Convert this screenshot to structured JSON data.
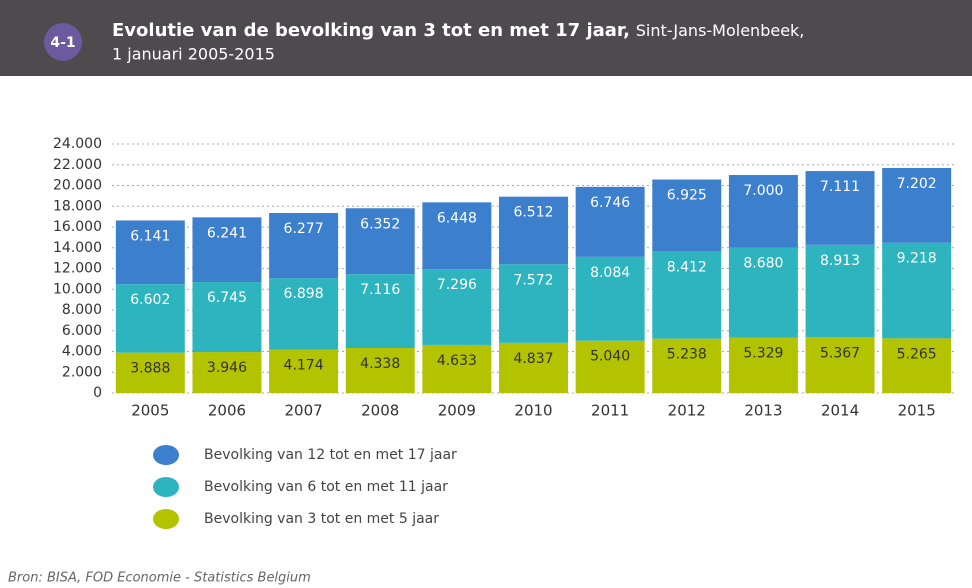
{
  "badge": "4-1",
  "chart_data": {
    "type": "bar",
    "stacked": true,
    "title": "Evolutie van de bevolking van 3 tot en met 17 jaar,",
    "subtitle": "Sint-Jans-Molenbeek,",
    "subtitle2": "1 januari 2005-2015",
    "categories": [
      "2005",
      "2006",
      "2007",
      "2008",
      "2009",
      "2010",
      "2011",
      "2012",
      "2013",
      "2014",
      "2015"
    ],
    "series": [
      {
        "name": "Bevolking van 3 tot en met 5 jaar",
        "color": "#b3c300",
        "values": [
          3888,
          3946,
          4174,
          4338,
          4633,
          4837,
          5040,
          5238,
          5329,
          5367,
          5265
        ],
        "value_labels": [
          "3.888",
          "3.946",
          "4.174",
          "4.338",
          "4.633",
          "4.837",
          "5.040",
          "5.238",
          "5.329",
          "5.367",
          "5.265"
        ]
      },
      {
        "name": "Bevolking van 6 tot en met 11 jaar",
        "color": "#2db4bf",
        "values": [
          6602,
          6745,
          6898,
          7116,
          7296,
          7572,
          8084,
          8412,
          8680,
          8913,
          9218
        ],
        "value_labels": [
          "6.602",
          "6.745",
          "6.898",
          "7.116",
          "7.296",
          "7.572",
          "8.084",
          "8.412",
          "8.680",
          "8.913",
          "9.218"
        ]
      },
      {
        "name": "Bevolking van 12 tot en met 17 jaar",
        "color": "#3b7fcd",
        "values": [
          6141,
          6241,
          6277,
          6352,
          6448,
          6512,
          6746,
          6925,
          7000,
          7111,
          7202
        ],
        "value_labels": [
          "6.141",
          "6.241",
          "6.277",
          "6.352",
          "6.448",
          "6.512",
          "6.746",
          "6.925",
          "7.000",
          "7.111",
          "7.202"
        ]
      }
    ],
    "ylim": [
      0,
      24000
    ],
    "yticks": [
      0,
      {
        "value": 2000,
        "label": "2.000"
      },
      {
        "value": 4000,
        "label": "4.000"
      },
      {
        "value": 6000,
        "label": "6.000"
      },
      {
        "value": 8000,
        "label": "8.000"
      },
      {
        "value": 10000,
        "label": "10.000"
      },
      {
        "value": 12000,
        "label": "12.000"
      },
      {
        "value": 14000,
        "label": "14.000"
      },
      {
        "value": 16000,
        "label": "16.000"
      },
      {
        "value": 18000,
        "label": "18.000"
      },
      {
        "value": 20000,
        "label": "20.000"
      },
      {
        "value": 22000,
        "label": "22.000"
      },
      {
        "value": 24000,
        "label": "24.000"
      }
    ],
    "grid": true
  },
  "source": "Bron: BISA, FOD Economie - Statistics Belgium"
}
